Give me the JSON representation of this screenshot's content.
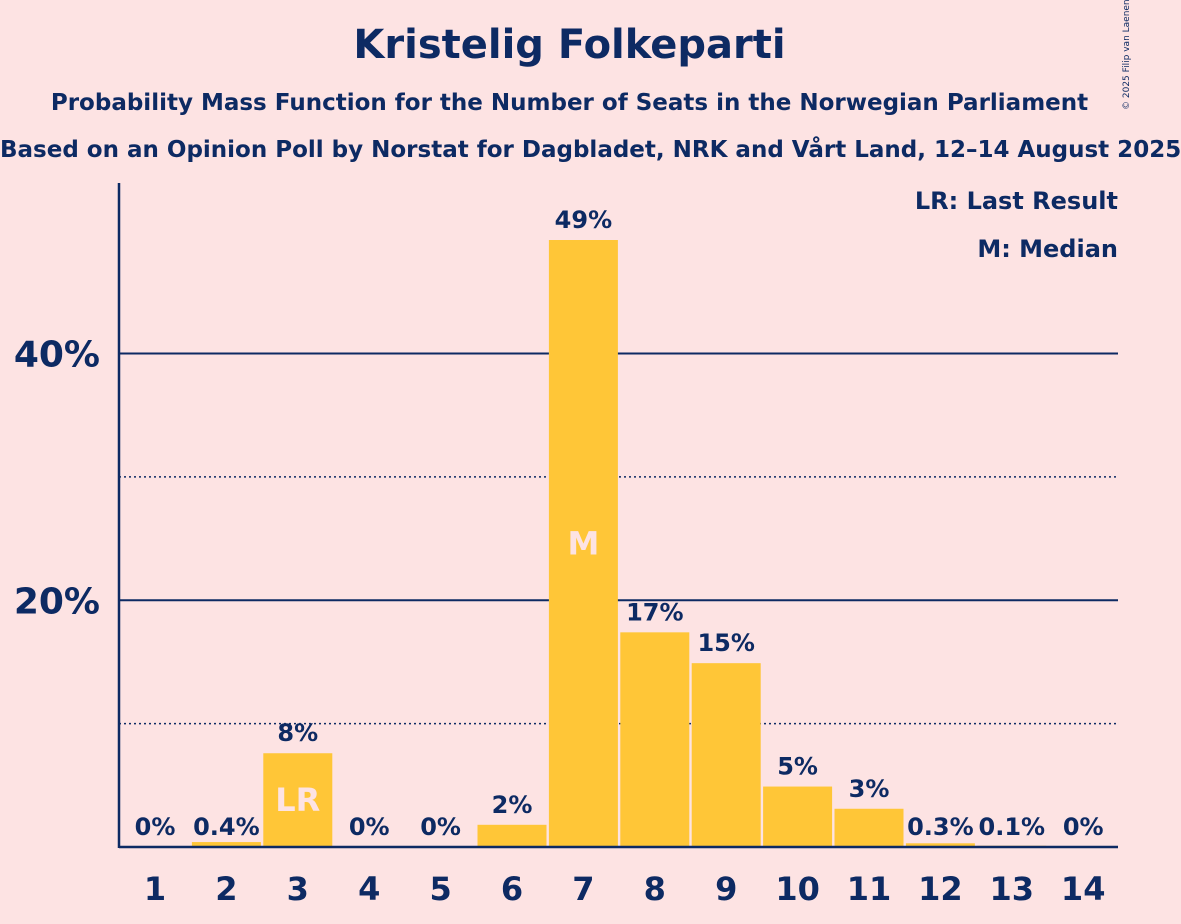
{
  "chart_data": {
    "type": "bar",
    "title": "Kristelig Folkeparti",
    "subtitle": "Probability Mass Function for the Number of Seats in the Norwegian Parliament",
    "subtitle2": "Based on an Opinion Poll by Norstat for Dagbladet, NRK and Vårt Land, 12–14 August 2025",
    "copyright": "© 2025 Filip van Laenen",
    "categories": [
      "1",
      "2",
      "3",
      "4",
      "5",
      "6",
      "7",
      "8",
      "9",
      "10",
      "11",
      "12",
      "13",
      "14"
    ],
    "values": [
      0,
      0.4,
      7.6,
      0,
      0,
      1.8,
      49.2,
      17.4,
      14.9,
      4.9,
      3.1,
      0.3,
      0.1,
      0
    ],
    "value_labels": [
      "0%",
      "0.4%",
      "8%",
      "0%",
      "0%",
      "2%",
      "49%",
      "17%",
      "15%",
      "5%",
      "3%",
      "0.3%",
      "0.1%",
      "0%"
    ],
    "bar_markers": {
      "3": "LR",
      "7": "M"
    },
    "ylim": [
      0,
      53.5
    ],
    "yticks": [
      {
        "value": 20,
        "label": "20%"
      },
      {
        "value": 40,
        "label": "40%"
      }
    ],
    "minor_gridlines": [
      10,
      30
    ],
    "legend": [
      "LR: Last Result",
      "M: Median"
    ],
    "legend_position": "top-right",
    "colors": {
      "background": "#fde3e3",
      "bar": "#ffc637",
      "text": "#0d2a63",
      "marker_text": "#fde3e3"
    }
  }
}
